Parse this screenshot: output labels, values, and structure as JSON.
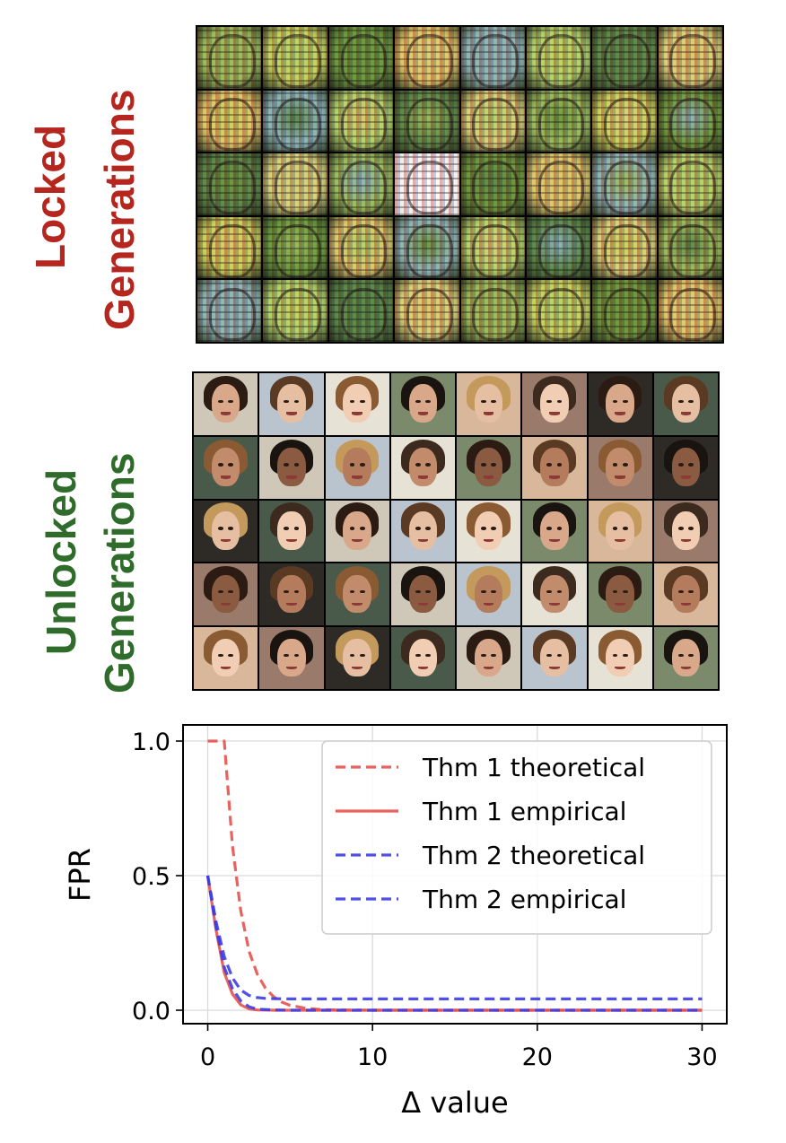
{
  "labels": {
    "locked_line1": "Locked",
    "locked_line2": "Generations",
    "unlocked_line1": "Unlocked",
    "unlocked_line2": "Generations"
  },
  "colors": {
    "locked_label": "#b5261e",
    "unlocked_label": "#2f6b2a",
    "thm1": "#e8514d",
    "thm2": "#3d3de6"
  },
  "grids": {
    "rows": 5,
    "cols": 8,
    "locked_palette": [
      "#9dbd5c",
      "#c9d35e",
      "#6f9a3f",
      "#e0c86a",
      "#8fb8b5",
      "#b4d36a",
      "#5f8a4a",
      "#d8d27a"
    ],
    "unlocked_skin": [
      "#d9a88a",
      "#c28b6b",
      "#e6bfa3",
      "#8a5a41",
      "#f0cdb3",
      "#b47c5d"
    ],
    "unlocked_hair": [
      "#2b1b12",
      "#5a3a22",
      "#8a5a33",
      "#1a1410",
      "#c49a5c",
      "#3d2a1e"
    ],
    "unlocked_bg": [
      "#cfc8b8",
      "#7a8a6a",
      "#2e2a26",
      "#b9c4cf",
      "#d8b79a",
      "#4a5a4a",
      "#e7e2d6",
      "#9a7a6a"
    ]
  },
  "chart_data": {
    "type": "line",
    "xlabel": "Δ value",
    "ylabel": "FPR",
    "xlim": [
      -1.5,
      31.5
    ],
    "ylim": [
      -0.05,
      1.06
    ],
    "xticks": [
      0,
      10,
      20,
      30
    ],
    "xtick_labels": [
      "0",
      "10",
      "20",
      "30"
    ],
    "yticks": [
      0.0,
      0.5,
      1.0
    ],
    "ytick_labels": [
      "0.0",
      "0.5",
      "1.0"
    ],
    "grid": true,
    "legend_position": "top-right",
    "series": [
      {
        "name": "Thm 1 theoretical",
        "color": "#e8514d",
        "style": "dashed",
        "x": [
          0,
          1.0,
          1.0,
          1.5,
          2.0,
          2.5,
          3.0,
          3.5,
          4.0,
          4.5,
          5.0,
          6.0,
          7.0,
          8.0,
          10.0,
          15.0,
          20.0,
          30.0
        ],
        "y": [
          1.0,
          1.0,
          1.0,
          0.61,
          0.37,
          0.22,
          0.135,
          0.082,
          0.05,
          0.03,
          0.018,
          0.007,
          0.002,
          0.001,
          0.0,
          0.0,
          0.0,
          0.0
        ]
      },
      {
        "name": "Thm 1 empirical",
        "color": "#e8514d",
        "style": "solid",
        "x": [
          0,
          0.5,
          1.0,
          1.5,
          2.0,
          2.5,
          3.0,
          4.0,
          5.0,
          10.0,
          30.0
        ],
        "y": [
          0.5,
          0.3,
          0.14,
          0.06,
          0.02,
          0.005,
          0.001,
          0.0,
          0.0,
          0.0,
          0.0
        ]
      },
      {
        "name": "Thm 2 theoretical",
        "color": "#3d3de6",
        "style": "dashed",
        "x": [
          0,
          0.5,
          1.0,
          1.5,
          2.0,
          2.5,
          3.0,
          4.0,
          5.0,
          10.0,
          30.0
        ],
        "y": [
          0.5,
          0.31,
          0.16,
          0.08,
          0.035,
          0.013,
          0.004,
          0.001,
          0.0,
          0.0,
          0.0
        ]
      },
      {
        "name": "Thm 2 empirical",
        "color": "#3d3de6",
        "style": "dashed",
        "x": [
          0,
          0.5,
          1.0,
          1.5,
          2.0,
          2.5,
          3.0,
          3.5,
          4.0,
          5.0,
          10.0,
          20.0,
          30.0
        ],
        "y": [
          0.5,
          0.33,
          0.2,
          0.12,
          0.075,
          0.055,
          0.047,
          0.044,
          0.043,
          0.042,
          0.042,
          0.042,
          0.042
        ]
      }
    ]
  }
}
